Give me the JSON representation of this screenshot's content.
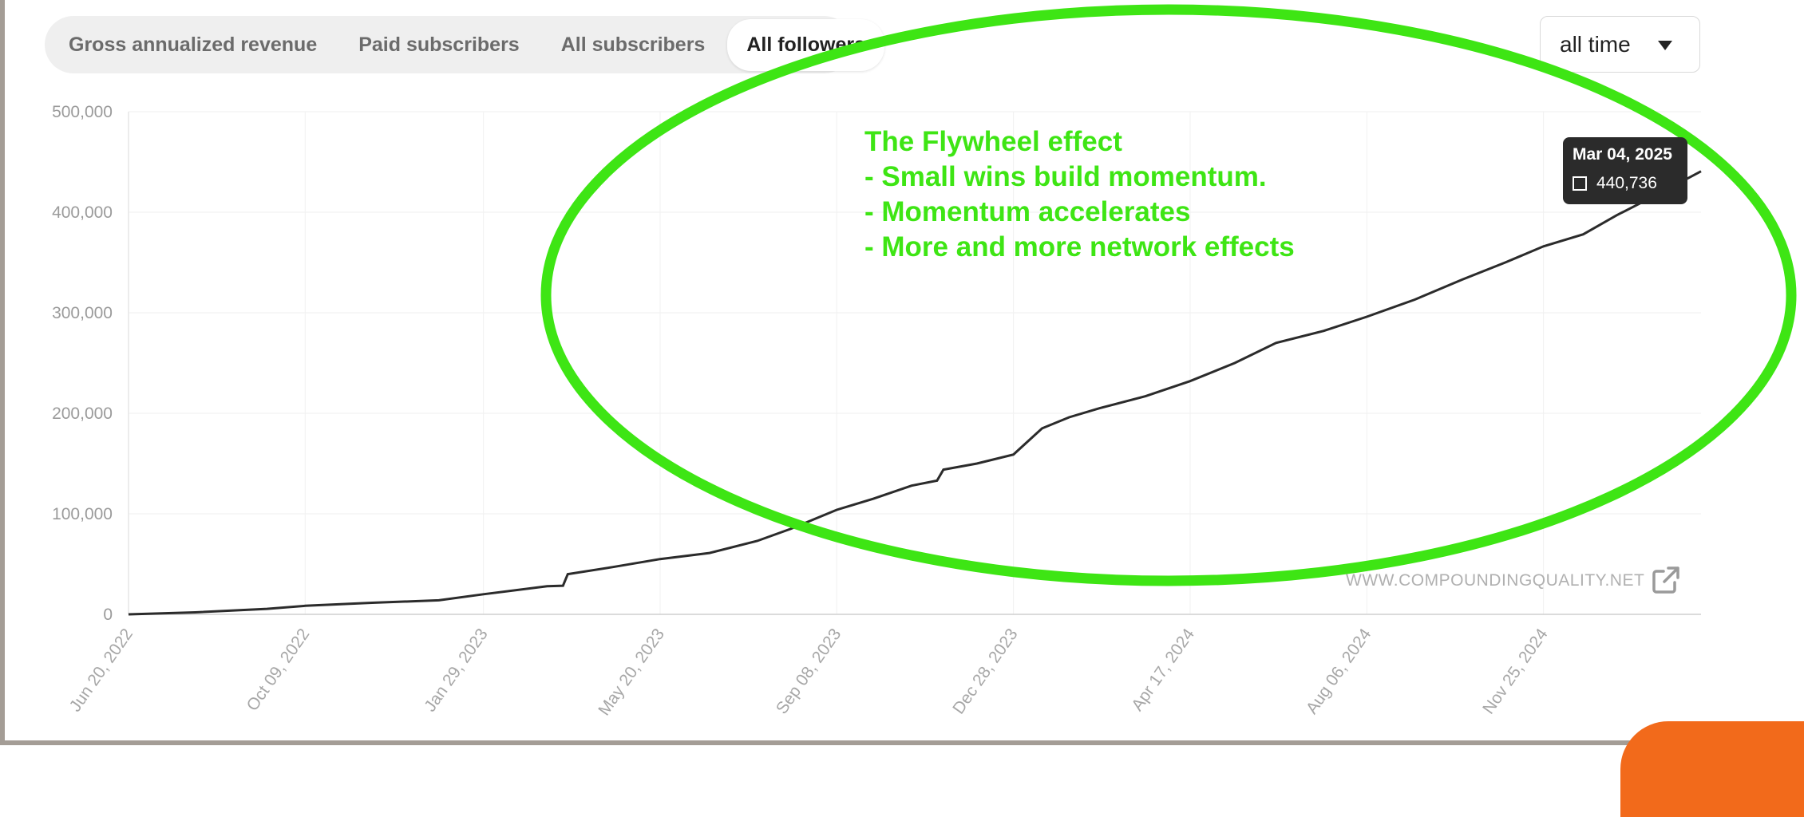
{
  "tabs": [
    {
      "label": "Gross annualized revenue",
      "active": false
    },
    {
      "label": "Paid subscribers",
      "active": false
    },
    {
      "label": "All subscribers",
      "active": false
    },
    {
      "label": "All followers",
      "active": true
    }
  ],
  "range_select": {
    "value": "all time",
    "icon": "caret-down-icon"
  },
  "annotation": {
    "lines": [
      "The Flywheel effect",
      "- Small wins build momentum.",
      "- Momentum accelerates",
      "- More and more network effects"
    ],
    "color": "#3ee514"
  },
  "tooltip": {
    "date": "Mar 04, 2025",
    "value": "440,736"
  },
  "watermark": {
    "text": "WWW.COMPOUNDINGQUALITY.NET",
    "icon": "external-link-icon"
  },
  "colors": {
    "line": "#2b2b2b",
    "highlight": "#3ee514",
    "accent": "#f26a1b"
  },
  "chart_data": {
    "type": "line",
    "title": "",
    "xlabel": "",
    "ylabel": "",
    "ylim": [
      0,
      500000
    ],
    "yticks": [
      0,
      100000,
      200000,
      300000,
      400000,
      500000
    ],
    "ytick_labels": [
      "0",
      "100,000",
      "200,000",
      "300,000",
      "400,000",
      "500,000"
    ],
    "xtick_labels": [
      "Jun 20, 2022",
      "Oct 09, 2022",
      "Jan 29, 2023",
      "May 20, 2023",
      "Sep 08, 2023",
      "Dec 28, 2023",
      "Apr 17, 2024",
      "Aug 06, 2024",
      "Nov 25, 2024"
    ],
    "xlim": [
      "2022-06-20",
      "2025-03-04"
    ],
    "grid": true,
    "series": [
      {
        "values": [
          [
            "2022-06-20",
            0
          ],
          [
            "2022-08-01",
            2000
          ],
          [
            "2022-09-15",
            5500
          ],
          [
            "2022-10-09",
            8500
          ],
          [
            "2022-11-20",
            11500
          ],
          [
            "2023-01-01",
            14000
          ],
          [
            "2023-01-29",
            20000
          ],
          [
            "2023-03-10",
            28000
          ],
          [
            "2023-03-20",
            28500
          ],
          [
            "2023-03-23",
            40000
          ],
          [
            "2023-04-20",
            47000
          ],
          [
            "2023-05-20",
            55000
          ],
          [
            "2023-06-20",
            61000
          ],
          [
            "2023-07-20",
            73000
          ],
          [
            "2023-08-10",
            85000
          ],
          [
            "2023-09-08",
            104000
          ],
          [
            "2023-10-01",
            115000
          ],
          [
            "2023-10-25",
            128000
          ],
          [
            "2023-11-10",
            133000
          ],
          [
            "2023-11-14",
            144000
          ],
          [
            "2023-12-05",
            150000
          ],
          [
            "2023-12-28",
            159000
          ],
          [
            "2024-01-15",
            185000
          ],
          [
            "2024-02-01",
            196000
          ],
          [
            "2024-02-20",
            205000
          ],
          [
            "2024-03-20",
            217000
          ],
          [
            "2024-04-17",
            232000
          ],
          [
            "2024-05-15",
            250000
          ],
          [
            "2024-06-10",
            270000
          ],
          [
            "2024-07-10",
            282000
          ],
          [
            "2024-08-06",
            296000
          ],
          [
            "2024-09-05",
            313000
          ],
          [
            "2024-10-05",
            333000
          ],
          [
            "2024-11-01",
            350000
          ],
          [
            "2024-11-25",
            366000
          ],
          [
            "2024-12-20",
            378000
          ],
          [
            "2025-01-10",
            397000
          ],
          [
            "2025-02-05",
            418000
          ],
          [
            "2025-03-04",
            440736
          ]
        ]
      }
    ]
  }
}
